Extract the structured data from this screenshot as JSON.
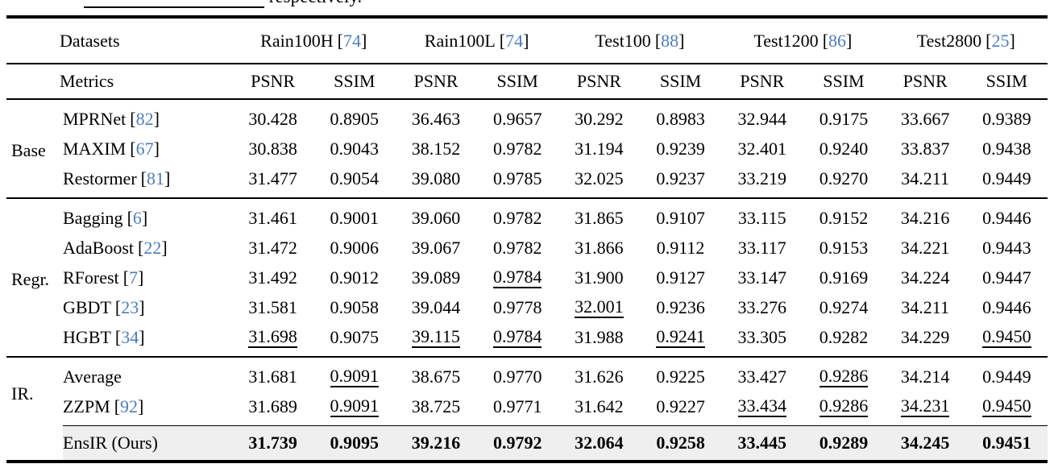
{
  "caption_fragment": "respectively.",
  "accent_color": "#4d7eb8",
  "highlight_color": "#efefef",
  "table": {
    "datasets_label": "Datasets",
    "metrics_label": "Metrics",
    "datasets": [
      {
        "name": "Rain100H",
        "cite": "74"
      },
      {
        "name": "Rain100L",
        "cite": "74"
      },
      {
        "name": "Test100",
        "cite": "88"
      },
      {
        "name": "Test1200",
        "cite": "86"
      },
      {
        "name": "Test2800",
        "cite": "25"
      }
    ],
    "metrics": [
      "PSNR",
      "SSIM",
      "PSNR",
      "SSIM",
      "PSNR",
      "SSIM",
      "PSNR",
      "SSIM",
      "PSNR",
      "SSIM"
    ],
    "groups": [
      {
        "label": "Base",
        "rows": [
          {
            "method": "MPRNet",
            "cite": "82",
            "values": [
              "30.428",
              "0.8905",
              "36.463",
              "0.9657",
              "30.292",
              "0.8983",
              "32.944",
              "0.9175",
              "33.667",
              "0.9389"
            ],
            "underline": []
          },
          {
            "method": "MAXIM",
            "cite": "67",
            "values": [
              "30.838",
              "0.9043",
              "38.152",
              "0.9782",
              "31.194",
              "0.9239",
              "32.401",
              "0.9240",
              "33.837",
              "0.9438"
            ],
            "underline": []
          },
          {
            "method": "Restormer",
            "cite": "81",
            "values": [
              "31.477",
              "0.9054",
              "39.080",
              "0.9785",
              "32.025",
              "0.9237",
              "33.219",
              "0.9270",
              "34.211",
              "0.9449"
            ],
            "underline": []
          }
        ]
      },
      {
        "label": "Regr.",
        "rows": [
          {
            "method": "Bagging",
            "cite": "6",
            "values": [
              "31.461",
              "0.9001",
              "39.060",
              "0.9782",
              "31.865",
              "0.9107",
              "33.115",
              "0.9152",
              "34.216",
              "0.9446"
            ],
            "underline": []
          },
          {
            "method": "AdaBoost",
            "cite": "22",
            "values": [
              "31.472",
              "0.9006",
              "39.067",
              "0.9782",
              "31.866",
              "0.9112",
              "33.117",
              "0.9153",
              "34.221",
              "0.9443"
            ],
            "underline": []
          },
          {
            "method": "RForest",
            "cite": "7",
            "values": [
              "31.492",
              "0.9012",
              "39.089",
              "0.9784",
              "31.900",
              "0.9127",
              "33.147",
              "0.9169",
              "34.224",
              "0.9447"
            ],
            "underline": [
              3
            ]
          },
          {
            "method": "GBDT",
            "cite": "23",
            "values": [
              "31.581",
              "0.9058",
              "39.044",
              "0.9778",
              "32.001",
              "0.9236",
              "33.276",
              "0.9274",
              "34.211",
              "0.9446"
            ],
            "underline": [
              4
            ]
          },
          {
            "method": "HGBT",
            "cite": "34",
            "values": [
              "31.698",
              "0.9075",
              "39.115",
              "0.9784",
              "31.988",
              "0.9241",
              "33.305",
              "0.9282",
              "34.229",
              "0.9450"
            ],
            "underline": [
              0,
              2,
              3,
              5,
              9
            ]
          }
        ]
      },
      {
        "label": "IR.",
        "rows": [
          {
            "method": "Average",
            "cite": null,
            "values": [
              "31.681",
              "0.9091",
              "38.675",
              "0.9770",
              "31.626",
              "0.9225",
              "33.427",
              "0.9286",
              "34.214",
              "0.9449"
            ],
            "underline": [
              1,
              7
            ]
          },
          {
            "method": "ZZPM",
            "cite": "92",
            "values": [
              "31.689",
              "0.9091",
              "38.725",
              "0.9771",
              "31.642",
              "0.9227",
              "33.434",
              "0.9286",
              "34.231",
              "0.9450"
            ],
            "underline": [
              1,
              6,
              7,
              8,
              9
            ]
          }
        ]
      }
    ],
    "final_row": {
      "method": "EnsIR (Ours)",
      "values": [
        "31.739",
        "0.9095",
        "39.216",
        "0.9792",
        "32.064",
        "0.9258",
        "33.445",
        "0.9289",
        "34.245",
        "0.9451"
      ]
    }
  }
}
